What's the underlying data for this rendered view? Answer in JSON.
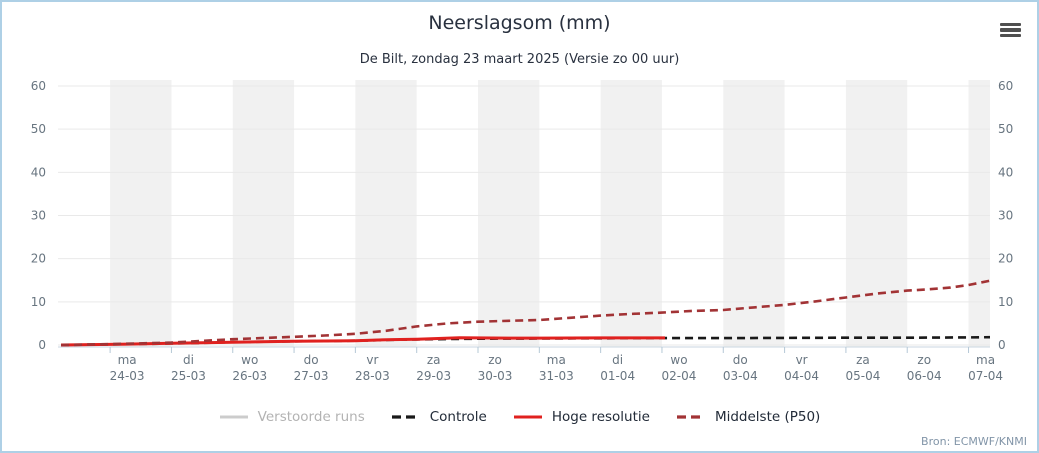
{
  "header": {
    "menu_icon": "hamburger-icon"
  },
  "source": "Bron: ECMWF/KNMI",
  "colors": {
    "card_border": "#aed0e6",
    "band": "#f1f1f1",
    "gridline": "#e9e9e9",
    "axis_line": "#c9d6e0",
    "tick": "#b5c8d6",
    "axis_label": "#687580",
    "title_text": "#29313f",
    "legend_text": "#222b38",
    "legend_muted_text": "#b3b3b3",
    "source_text": "#8295a8",
    "menu_icon": "#4f4f4f"
  },
  "chart_data": {
    "type": "line",
    "title": "Neerslagsom (mm)",
    "subtitle": "De Bilt, zondag 23 maart 2025 (Versie zo 00 uur)",
    "xlabel": "",
    "ylabel": "",
    "ylim": [
      0,
      60
    ],
    "yticks": [
      0,
      10,
      20,
      30,
      40,
      50,
      60
    ],
    "grid": "horizontal",
    "legend_position": "bottom",
    "x_unit_note": "x in days, 0 = 24-03 00:00",
    "xlim": [
      -0.85,
      14.35
    ],
    "x_categories": [
      {
        "day": "ma",
        "date": "24-03"
      },
      {
        "day": "di",
        "date": "25-03"
      },
      {
        "day": "wo",
        "date": "26-03"
      },
      {
        "day": "do",
        "date": "27-03"
      },
      {
        "day": "vr",
        "date": "28-03"
      },
      {
        "day": "za",
        "date": "29-03"
      },
      {
        "day": "zo",
        "date": "30-03"
      },
      {
        "day": "ma",
        "date": "31-03"
      },
      {
        "day": "di",
        "date": "01-04"
      },
      {
        "day": "wo",
        "date": "02-04"
      },
      {
        "day": "do",
        "date": "03-04"
      },
      {
        "day": "vr",
        "date": "04-04"
      },
      {
        "day": "za",
        "date": "05-04"
      },
      {
        "day": "zo",
        "date": "06-04"
      },
      {
        "day": "ma",
        "date": "07-04"
      }
    ],
    "shaded_band_days": [
      0,
      2,
      4,
      6,
      8,
      10,
      12,
      14
    ],
    "series": [
      {
        "name": "Verstoorde runs",
        "color": "#cccccc",
        "dash": "solid",
        "visible": false,
        "points": []
      },
      {
        "name": "Controle",
        "color": "#191919",
        "dash": "dashed",
        "visible": true,
        "points": [
          [
            -0.8,
            0
          ],
          [
            0,
            0.15
          ],
          [
            1,
            0.35
          ],
          [
            2,
            0.65
          ],
          [
            3,
            0.85
          ],
          [
            4,
            1.0
          ],
          [
            4.6,
            1.2
          ],
          [
            5,
            1.3
          ],
          [
            6,
            1.45
          ],
          [
            7,
            1.5
          ],
          [
            8,
            1.55
          ],
          [
            9,
            1.6
          ],
          [
            10,
            1.6
          ],
          [
            11,
            1.65
          ],
          [
            12,
            1.7
          ],
          [
            13,
            1.7
          ],
          [
            14,
            1.75
          ],
          [
            14.35,
            1.8
          ]
        ]
      },
      {
        "name": "Hoge resolutie",
        "color": "#e0211f",
        "dash": "solid",
        "visible": true,
        "points": [
          [
            -0.8,
            0
          ],
          [
            0,
            0.15
          ],
          [
            1,
            0.4
          ],
          [
            2,
            0.65
          ],
          [
            3,
            0.85
          ],
          [
            4,
            1.0
          ],
          [
            4.6,
            1.25
          ],
          [
            5,
            1.35
          ],
          [
            5.7,
            1.7
          ],
          [
            6.5,
            1.6
          ],
          [
            7,
            1.6
          ],
          [
            8,
            1.65
          ],
          [
            9.05,
            1.65
          ]
        ]
      },
      {
        "name": "Middelste (P50)",
        "color": "#a23335",
        "dash": "dashed",
        "visible": true,
        "points": [
          [
            -0.8,
            0
          ],
          [
            0,
            0.2
          ],
          [
            1,
            0.55
          ],
          [
            2,
            1.35
          ],
          [
            3,
            1.9
          ],
          [
            3.5,
            2.2
          ],
          [
            4,
            2.6
          ],
          [
            4.5,
            3.3
          ],
          [
            5,
            4.3
          ],
          [
            5.5,
            5.0
          ],
          [
            6,
            5.4
          ],
          [
            6.5,
            5.6
          ],
          [
            7,
            5.8
          ],
          [
            7.5,
            6.3
          ],
          [
            8,
            6.8
          ],
          [
            8.5,
            7.2
          ],
          [
            9,
            7.5
          ],
          [
            9.5,
            7.9
          ],
          [
            10,
            8.1
          ],
          [
            10.5,
            8.7
          ],
          [
            11,
            9.3
          ],
          [
            11.5,
            10.1
          ],
          [
            12,
            11.0
          ],
          [
            12.5,
            11.9
          ],
          [
            13,
            12.6
          ],
          [
            13.35,
            12.9
          ],
          [
            13.7,
            13.3
          ],
          [
            14,
            13.9
          ],
          [
            14.35,
            14.9
          ]
        ]
      }
    ]
  }
}
